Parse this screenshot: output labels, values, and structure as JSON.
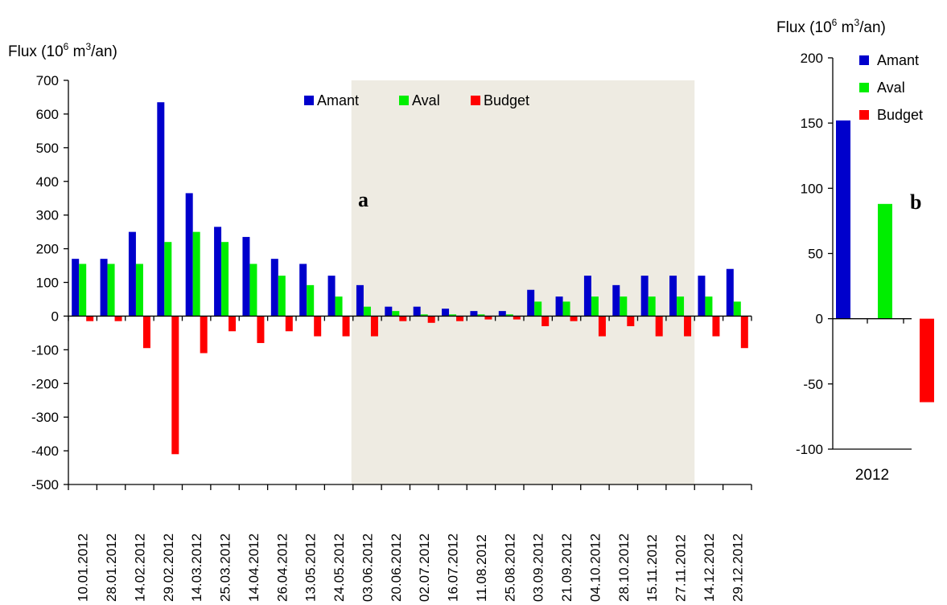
{
  "colors": {
    "amant": "#0000cc",
    "aval": "#00ee00",
    "budget": "#ff0000",
    "shade": "#eeebe2",
    "axis": "#000000"
  },
  "chart_data": [
    {
      "panel": "a",
      "type": "bar",
      "ylabel": {
        "prefix": "Flux  (10",
        "exp1": "6",
        "mid": " m",
        "exp2": "3",
        "suffix": "/an)"
      },
      "ylim": [
        -500,
        700
      ],
      "yticks": [
        -500,
        -400,
        -300,
        -200,
        -100,
        0,
        100,
        200,
        300,
        400,
        500,
        600,
        700
      ],
      "legend_position": "top-center",
      "shaded_categories": [
        "03.06.2012",
        "27.11.2012"
      ],
      "categories": [
        "10.01.2012",
        "28.01.2012",
        "14.02.2012",
        "29.02.2012",
        "14.03.2012",
        "25.03.2012",
        "14.04.2012",
        "26.04.2012",
        "13.05.2012",
        "24.05.2012",
        "03.06.2012",
        "20.06.2012",
        "02.07.2012",
        "16.07.2012",
        "11.08.2012",
        "25.08.2012",
        "03.09.2012",
        "21.09.2012",
        "04.10.2012",
        "28.10.2012",
        "15.11.2012",
        "27.11.2012",
        "14.12.2012",
        "29.12.2012"
      ],
      "series": [
        {
          "name": "Amant",
          "color": "#0000cc",
          "values": [
            170,
            170,
            250,
            635,
            365,
            265,
            235,
            170,
            155,
            120,
            92,
            28,
            28,
            22,
            15,
            15,
            78,
            58,
            120,
            92,
            120,
            120,
            120,
            140
          ]
        },
        {
          "name": "Aval",
          "color": "#00ee00",
          "values": [
            155,
            155,
            155,
            220,
            250,
            220,
            155,
            120,
            92,
            58,
            28,
            15,
            5,
            5,
            5,
            5,
            43,
            43,
            58,
            58,
            58,
            58,
            58,
            43
          ]
        },
        {
          "name": "Budget",
          "color": "#ff0000",
          "values": [
            -15,
            -15,
            -95,
            -410,
            -110,
            -45,
            -80,
            -45,
            -60,
            -60,
            -60,
            -15,
            -20,
            -15,
            -10,
            -10,
            -30,
            -15,
            -60,
            -30,
            -60,
            -60,
            -60,
            -95
          ]
        }
      ]
    },
    {
      "panel": "b",
      "type": "bar",
      "ylabel": {
        "prefix": "Flux  (10",
        "exp1": "6",
        "mid": " m",
        "exp2": "3",
        "suffix": "/an)"
      },
      "ylim": [
        -100,
        200
      ],
      "yticks": [
        -100,
        -50,
        0,
        50,
        100,
        150,
        200
      ],
      "legend_position": "top-right",
      "categories": [
        "2012"
      ],
      "series": [
        {
          "name": "Amant",
          "color": "#0000cc",
          "values": [
            152
          ]
        },
        {
          "name": "Aval",
          "color": "#00ee00",
          "values": [
            88
          ]
        },
        {
          "name": "Budget",
          "color": "#ff0000",
          "values": [
            -64
          ]
        }
      ]
    }
  ]
}
